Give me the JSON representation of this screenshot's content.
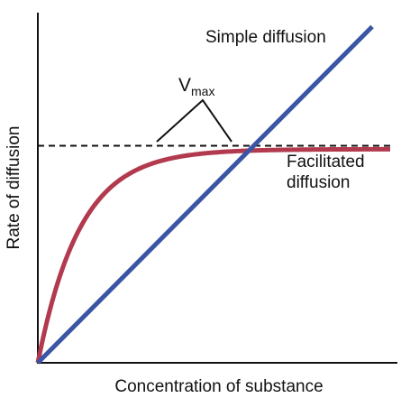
{
  "chart_data": {
    "type": "line",
    "title": "",
    "xlabel": "Concentration of substance",
    "ylabel": "Rate of diffusion",
    "xlim": [
      0,
      100
    ],
    "ylim": [
      0,
      100
    ],
    "grid": false,
    "series": [
      {
        "name": "Simple diffusion",
        "color": "#3a55a4",
        "kind": "linear",
        "x": [
          0,
          93
        ],
        "y": [
          0,
          96
        ]
      },
      {
        "name": "Facilitated diffusion",
        "color": "#b23a4e",
        "kind": "saturating",
        "vmax": 61,
        "k": 0.085,
        "x_end": 98
      }
    ],
    "reference": {
      "kind": "dashed-horizontal",
      "y": 62,
      "x_end": 98,
      "label_main": "V",
      "label_sub": "max"
    },
    "annotations": {
      "simple": "Simple diffusion",
      "facilitated_line1": "Facilitated",
      "facilitated_line2": "diffusion"
    }
  }
}
